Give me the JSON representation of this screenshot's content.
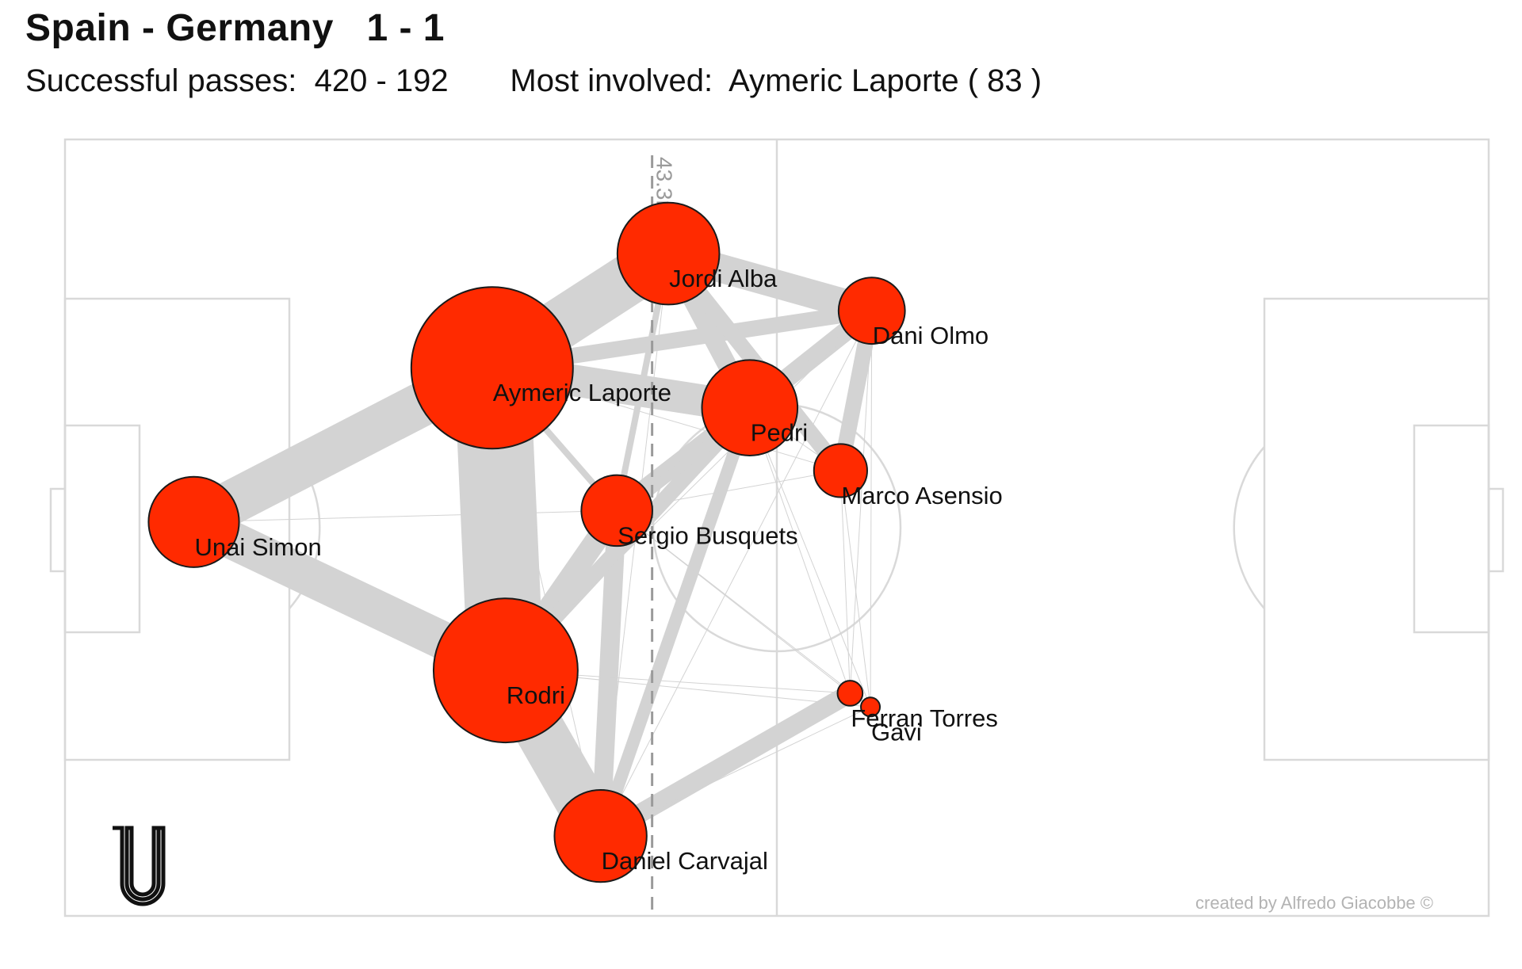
{
  "header": {
    "title": "Spain - Germany   1 - 1",
    "subtitle": "Successful passes:  420 - 192       Most involved:  Aymeric Laporte ( 83 )"
  },
  "defensive_line_label": "43.3m",
  "credit": "created by Alfredo Giacobbe ©",
  "logo_letter": "U",
  "colors": {
    "node_fill": "#ff2a00",
    "node_stroke": "#1a1a1a",
    "edge": "#d3d3d3",
    "pitch_lines": "#d9d9d9",
    "reference_line": "#9a9a9a"
  },
  "chart_data": {
    "type": "network",
    "pitch": {
      "length_m": 105,
      "width_m": 68
    },
    "defensive_line_m": 43.3,
    "nodes": [
      {
        "id": "simon",
        "name": "Unai Simon",
        "x": 9.5,
        "y": 34.5,
        "passes": 26
      },
      {
        "id": "laporte",
        "name": "Aymeric Laporte",
        "x": 31.5,
        "y": 48.0,
        "passes": 83
      },
      {
        "id": "rodri",
        "name": "Rodri",
        "x": 32.5,
        "y": 21.5,
        "passes": 66
      },
      {
        "id": "alba",
        "name": "Jordi Alba",
        "x": 44.5,
        "y": 58.0,
        "passes": 33
      },
      {
        "id": "busquets",
        "name": "Sergio Busquets",
        "x": 40.7,
        "y": 35.5,
        "passes": 16
      },
      {
        "id": "pedri",
        "name": "Pedri",
        "x": 50.5,
        "y": 44.5,
        "passes": 29
      },
      {
        "id": "carvajal",
        "name": "Daniel Carvajal",
        "x": 39.5,
        "y": 7.0,
        "passes": 27
      },
      {
        "id": "olmo",
        "name": "Dani Olmo",
        "x": 59.5,
        "y": 53.0,
        "passes": 14
      },
      {
        "id": "asensio",
        "name": "Marco Asensio",
        "x": 57.2,
        "y": 39.0,
        "passes": 9
      },
      {
        "id": "ferran",
        "name": "Ferran Torres",
        "x": 57.9,
        "y": 19.5,
        "passes": 2
      },
      {
        "id": "gavi",
        "name": "Gavi",
        "x": 59.4,
        "y": 18.3,
        "passes": 1
      }
    ],
    "edges": [
      {
        "a": "simon",
        "b": "laporte",
        "w": 14
      },
      {
        "a": "simon",
        "b": "rodri",
        "w": 12
      },
      {
        "a": "laporte",
        "b": "rodri",
        "w": 24
      },
      {
        "a": "laporte",
        "b": "alba",
        "w": 16
      },
      {
        "a": "laporte",
        "b": "pedri",
        "w": 10
      },
      {
        "a": "laporte",
        "b": "olmo",
        "w": 5
      },
      {
        "a": "laporte",
        "b": "busquets",
        "w": 2
      },
      {
        "a": "rodri",
        "b": "carvajal",
        "w": 16
      },
      {
        "a": "rodri",
        "b": "busquets",
        "w": 7
      },
      {
        "a": "rodri",
        "b": "pedri",
        "w": 5
      },
      {
        "a": "busquets",
        "b": "pedri",
        "w": 6
      },
      {
        "a": "busquets",
        "b": "carvajal",
        "w": 6
      },
      {
        "a": "alba",
        "b": "olmo",
        "w": 9
      },
      {
        "a": "alba",
        "b": "pedri",
        "w": 6
      },
      {
        "a": "alba",
        "b": "asensio",
        "w": 5
      },
      {
        "a": "alba",
        "b": "busquets",
        "w": 2
      },
      {
        "a": "pedri",
        "b": "olmo",
        "w": 6
      },
      {
        "a": "pedri",
        "b": "carvajal",
        "w": 4
      },
      {
        "a": "olmo",
        "b": "asensio",
        "w": 5
      },
      {
        "a": "carvajal",
        "b": "ferran",
        "w": 6
      },
      {
        "a": "rodri",
        "b": "ferran",
        "w": 1
      },
      {
        "a": "rodri",
        "b": "gavi",
        "w": 1
      },
      {
        "a": "rodri",
        "b": "olmo",
        "w": 1
      },
      {
        "a": "simon",
        "b": "busquets",
        "w": 1
      },
      {
        "a": "laporte",
        "b": "carvajal",
        "w": 1
      },
      {
        "a": "laporte",
        "b": "asensio",
        "w": 1
      },
      {
        "a": "busquets",
        "b": "ferran",
        "w": 1
      },
      {
        "a": "busquets",
        "b": "olmo",
        "w": 1
      },
      {
        "a": "busquets",
        "b": "asensio",
        "w": 1
      },
      {
        "a": "pedri",
        "b": "ferran",
        "w": 1
      },
      {
        "a": "pedri",
        "b": "gavi",
        "w": 1
      },
      {
        "a": "pedri",
        "b": "asensio",
        "w": 1
      },
      {
        "a": "olmo",
        "b": "ferran",
        "w": 1
      },
      {
        "a": "olmo",
        "b": "gavi",
        "w": 1
      },
      {
        "a": "asensio",
        "b": "ferran",
        "w": 1
      },
      {
        "a": "asensio",
        "b": "gavi",
        "w": 1
      },
      {
        "a": "carvajal",
        "b": "gavi",
        "w": 1
      },
      {
        "a": "carvajal",
        "b": "olmo",
        "w": 1
      },
      {
        "a": "carvajal",
        "b": "alba",
        "w": 1
      },
      {
        "a": "busquets",
        "b": "gavi",
        "w": 1
      }
    ]
  }
}
